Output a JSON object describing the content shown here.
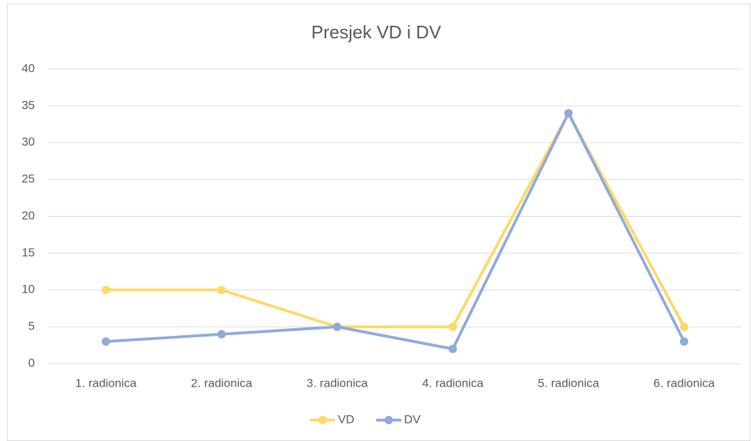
{
  "chart_data": {
    "type": "line",
    "title": "Presjek VD i DV",
    "categories": [
      "1. radionica",
      "2. radionica",
      "3. radionica",
      "4. radionica",
      "5. radionica",
      "6. radionica"
    ],
    "series": [
      {
        "name": "VD",
        "color": "#ffd966",
        "values": [
          10,
          10,
          5,
          5,
          34,
          5
        ]
      },
      {
        "name": "DV",
        "color": "#8faadc",
        "values": [
          3,
          4,
          5,
          2,
          34,
          3
        ]
      }
    ],
    "ylim": [
      0,
      40
    ],
    "yticks": [
      0,
      5,
      10,
      15,
      20,
      25,
      30,
      35,
      40
    ],
    "grid": true,
    "legend": "bottom"
  }
}
